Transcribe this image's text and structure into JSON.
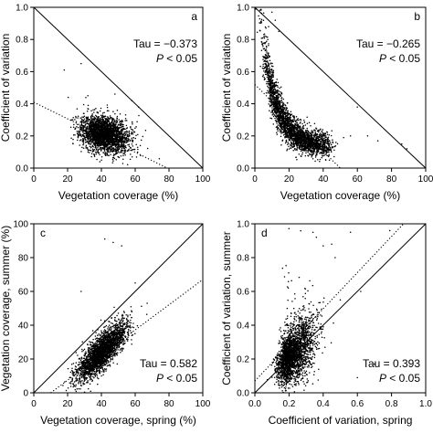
{
  "figure": {
    "background": "#ffffff",
    "ink": "#000000"
  },
  "chart_data": [
    {
      "type": "scatter",
      "panel": "a",
      "xlabel": "Vegetation coverage (%)",
      "ylabel": "Coefficient of variation",
      "xlim": [
        0,
        100
      ],
      "ylim": [
        0,
        1.0
      ],
      "xticks": [
        0,
        20,
        40,
        60,
        80,
        100
      ],
      "yticks": [
        0.0,
        0.2,
        0.4,
        0.6,
        0.8,
        1.0
      ],
      "annotations": [
        "Tau = −0.373",
        "P < 0.05"
      ],
      "reference_line": {
        "style": "solid",
        "from": [
          0,
          1.0
        ],
        "to": [
          100,
          0
        ]
      },
      "trend_line": {
        "style": "dotted",
        "from": [
          0,
          0.41
        ],
        "to": [
          79,
          0
        ]
      },
      "cloud": {
        "x_center": 42,
        "x_spread": 7,
        "y_center": 0.21,
        "y_spread": 0.055,
        "count": 2600,
        "seed": 11
      },
      "outliers": [
        [
          18,
          0.61
        ],
        [
          28,
          0.65
        ],
        [
          58,
          0.42
        ],
        [
          32,
          0.45
        ],
        [
          48,
          0.46
        ],
        [
          62,
          0.38
        ]
      ]
    },
    {
      "type": "scatter",
      "panel": "b",
      "xlabel": "Vegetation coverage (%)",
      "ylabel": "Coefficient of variation",
      "xlim": [
        0,
        100
      ],
      "ylim": [
        0,
        1.0
      ],
      "xticks": [
        0,
        20,
        40,
        60,
        80,
        100
      ],
      "yticks": [
        0.0,
        0.2,
        0.4,
        0.6,
        0.8,
        1.0
      ],
      "annotations": [
        "Tau = −0.265",
        "P < 0.05"
      ],
      "reference_line": {
        "style": "solid",
        "from": [
          0,
          1.0
        ],
        "to": [
          100,
          0
        ]
      },
      "trend_line": {
        "style": "dotted",
        "from": [
          0,
          0.52
        ],
        "to": [
          50,
          0
        ]
      },
      "cloud": {
        "shape": "decay",
        "x_min": 8,
        "x_max": 42,
        "y_center": 0.22,
        "y_spread": 0.06,
        "count": 2600,
        "seed": 23
      },
      "outliers": [
        [
          10,
          0.97
        ],
        [
          12,
          0.92
        ],
        [
          8,
          0.88
        ],
        [
          14,
          0.85
        ],
        [
          60,
          0.38
        ],
        [
          66,
          0.2
        ],
        [
          72,
          0.17
        ],
        [
          86,
          0.15
        ],
        [
          89,
          0.12
        ],
        [
          52,
          0.19
        ],
        [
          56,
          0.2
        ]
      ]
    },
    {
      "type": "scatter",
      "panel": "c",
      "xlabel": "Vegetation coverage, spring (%)",
      "ylabel": "Vegetation coverage, summer (%)",
      "xlim": [
        0,
        100
      ],
      "ylim": [
        0,
        100
      ],
      "xticks": [
        0,
        20,
        40,
        60,
        80,
        100
      ],
      "yticks": [
        0,
        20,
        40,
        60,
        80,
        100
      ],
      "annotations": [
        "Tau = 0.582",
        "P < 0.05"
      ],
      "reference_line": {
        "style": "solid",
        "from": [
          0,
          0
        ],
        "to": [
          100,
          100
        ]
      },
      "trend_line": {
        "style": "dotted",
        "from": [
          10,
          0
        ],
        "to": [
          100,
          67
        ]
      },
      "cloud": {
        "shape": "elongated",
        "x_center": 40,
        "x_spread": 7,
        "slope": 0.9,
        "intercept": -12,
        "y_spread": 5,
        "count": 2600,
        "seed": 37
      },
      "outliers": [
        [
          42,
          91
        ],
        [
          47,
          89
        ],
        [
          52,
          87
        ],
        [
          28,
          60
        ],
        [
          60,
          65
        ],
        [
          58,
          48
        ]
      ]
    },
    {
      "type": "scatter",
      "panel": "d",
      "xlabel": "Coefficient of variation, spring",
      "ylabel": "Coefficient of variation, summer",
      "xlim": [
        0,
        1.0
      ],
      "ylim": [
        0,
        1.0
      ],
      "xticks": [
        0.0,
        0.2,
        0.4,
        0.6,
        0.8,
        1.0
      ],
      "yticks": [
        0.0,
        0.2,
        0.4,
        0.6,
        0.8,
        1.0
      ],
      "annotations": [
        "Tau = 0.393",
        "P < 0.05"
      ],
      "reference_line": {
        "style": "solid",
        "from": [
          0,
          0
        ],
        "to": [
          1.0,
          1.0
        ]
      },
      "trend_line": {
        "style": "dotted",
        "from": [
          0,
          0.07
        ],
        "to": [
          0.87,
          1.0
        ]
      },
      "cloud": {
        "shape": "fan",
        "x_center": 0.21,
        "x_spread": 0.06,
        "slope": 0.8,
        "intercept": 0.05,
        "y_spread": 0.08,
        "count": 2600,
        "seed": 53
      },
      "outliers": [
        [
          0.34,
          0.95
        ],
        [
          0.36,
          0.92
        ],
        [
          0.4,
          0.87
        ],
        [
          0.56,
          0.95
        ],
        [
          0.79,
          0.96
        ],
        [
          0.62,
          0.6
        ],
        [
          0.5,
          0.55
        ],
        [
          0.6,
          0.09
        ],
        [
          0.7,
          0.17
        ],
        [
          0.45,
          0.88
        ],
        [
          0.47,
          0.8
        ]
      ]
    }
  ]
}
